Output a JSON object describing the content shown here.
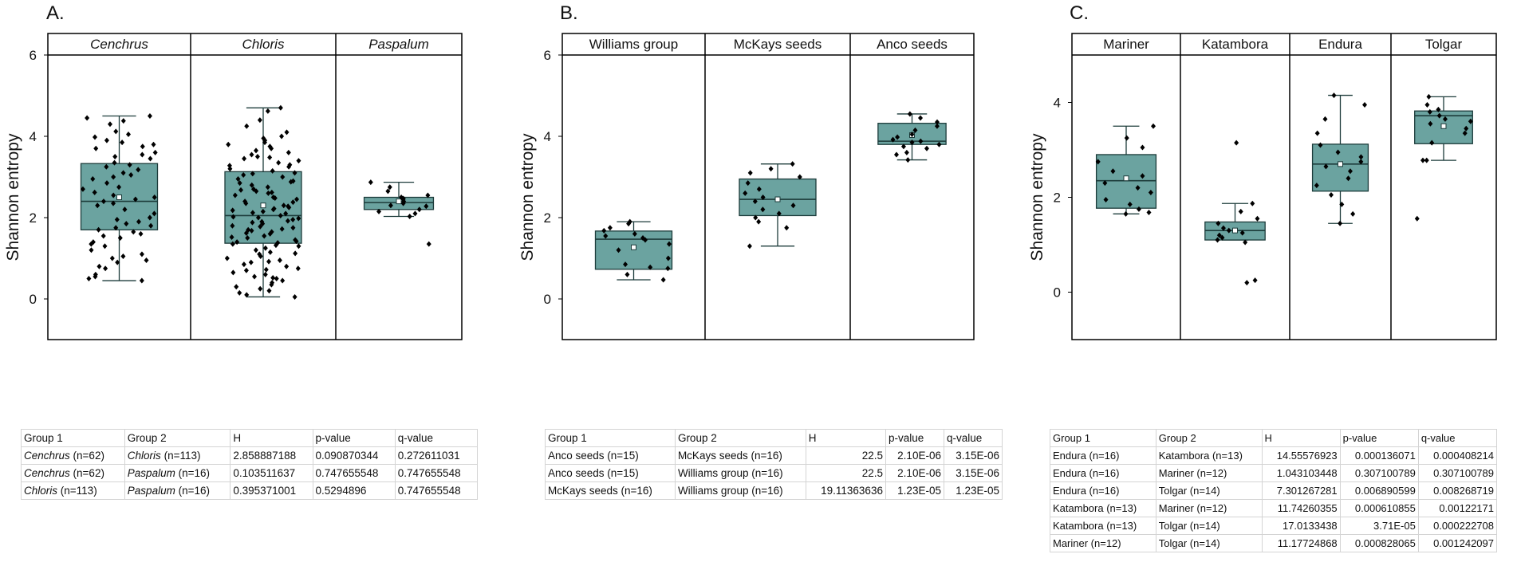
{
  "box_color": "#6ba3a0",
  "box_edge": "#1c3b3a",
  "point_color": "#000000",
  "chart_data": [
    {
      "type": "box",
      "panel": "A.",
      "ylabel": "Shannon entropy",
      "ylim": [
        -1,
        6
      ],
      "yticks": [
        0,
        2,
        4,
        6
      ],
      "italic_groups": true,
      "groups": [
        {
          "name": "Cenchrus",
          "n": 62,
          "min": 0.45,
          "q1": 1.7,
          "median": 2.4,
          "q3": 3.33,
          "max": 4.5,
          "mean": 2.5,
          "points": [
            4.5,
            4.45,
            4.38,
            4.3,
            4.12,
            4.05,
            3.98,
            3.9,
            3.85,
            3.8,
            3.75,
            3.7,
            3.6,
            3.55,
            3.5,
            3.45,
            3.35,
            3.3,
            3.25,
            3.18,
            3.1,
            3.05,
            3.0,
            2.95,
            2.85,
            2.75,
            2.7,
            2.62,
            2.55,
            2.5,
            2.45,
            2.4,
            2.35,
            2.3,
            2.2,
            2.1,
            2.0,
            1.95,
            1.9,
            1.85,
            1.8,
            1.75,
            1.7,
            1.65,
            1.6,
            1.55,
            1.5,
            1.4,
            1.35,
            1.3,
            1.2,
            1.1,
            1.05,
            1.0,
            0.95,
            0.9,
            0.8,
            0.75,
            0.6,
            0.55,
            0.5,
            0.45
          ]
        },
        {
          "name": "Chloris",
          "n": 113,
          "min": 0.05,
          "q1": 1.37,
          "median": 2.05,
          "q3": 3.13,
          "max": 4.7,
          "mean": 2.3,
          "points": [
            4.7,
            4.62,
            4.4,
            4.25,
            4.1,
            4.0,
            3.95,
            3.9,
            3.85,
            3.8,
            3.75,
            3.7,
            3.65,
            3.6,
            3.55,
            3.5,
            3.45,
            3.4,
            3.35,
            3.3,
            3.25,
            3.2,
            3.15,
            3.1,
            3.05,
            3.0,
            2.95,
            2.9,
            2.85,
            2.8,
            2.75,
            2.7,
            2.65,
            2.6,
            2.55,
            2.5,
            2.45,
            2.4,
            2.35,
            2.3,
            2.25,
            2.2,
            2.18,
            2.15,
            2.1,
            2.05,
            2.02,
            2.0,
            1.98,
            1.95,
            1.9,
            1.88,
            1.85,
            1.8,
            1.75,
            1.7,
            1.68,
            1.65,
            1.6,
            1.55,
            1.5,
            1.45,
            1.42,
            1.4,
            1.38,
            1.35,
            1.3,
            1.25,
            1.2,
            1.15,
            1.1,
            1.05,
            1.0,
            0.95,
            0.9,
            0.85,
            0.8,
            0.75,
            0.7,
            0.65,
            0.6,
            0.55,
            0.5,
            0.45,
            0.4,
            0.35,
            0.3,
            0.25,
            0.2,
            0.15,
            0.1,
            0.05,
            2.62,
            2.48,
            2.28,
            2.12,
            1.92,
            1.78,
            1.62,
            3.48,
            3.28,
            3.08,
            2.88,
            2.68,
            2.38,
            2.22,
            1.72,
            1.52,
            1.32,
            1.12,
            0.92,
            0.72,
            0.52
          ]
        },
        {
          "name": "Paspalum",
          "n": 16,
          "min": 2.03,
          "q1": 2.2,
          "median": 2.37,
          "q3": 2.5,
          "max": 2.87,
          "mean": 2.4,
          "points": [
            2.87,
            2.75,
            2.65,
            2.55,
            2.5,
            2.47,
            2.45,
            2.4,
            2.35,
            2.3,
            2.28,
            2.2,
            2.15,
            2.1,
            2.03,
            1.35
          ]
        }
      ],
      "table": {
        "headers": [
          "Group 1",
          "Group 2",
          "H",
          "p-value",
          "q-value"
        ],
        "rows": [
          {
            "g1": "Cenchrus",
            "n1": "(n=62)",
            "g2": "Chloris",
            "n2": "(n=113)",
            "h": "2.858887188",
            "p": "0.090870344",
            "q": "0.272611031"
          },
          {
            "g1": "Cenchrus",
            "n1": "(n=62)",
            "g2": "Paspalum",
            "n2": "(n=16)",
            "h": "0.103511637",
            "p": "0.747655548",
            "q": "0.747655548"
          },
          {
            "g1": "Chloris",
            "n1": "(n=113)",
            "g2": "Paspalum",
            "n2": "(n=16)",
            "h": "0.395371001",
            "p": "0.5294896",
            "q": "0.747655548"
          }
        ]
      }
    },
    {
      "type": "box",
      "panel": "B.",
      "ylabel": "Shannon entropy",
      "ylim": [
        -1,
        6
      ],
      "yticks": [
        0,
        2,
        4,
        6
      ],
      "italic_groups": false,
      "groups": [
        {
          "name": "Williams group",
          "min": 0.47,
          "q1": 0.73,
          "median": 1.47,
          "q3": 1.67,
          "max": 1.9,
          "mean": 1.27,
          "points": [
            1.9,
            1.85,
            1.75,
            1.68,
            1.6,
            1.55,
            1.5,
            1.45,
            1.35,
            1.2,
            1.0,
            0.85,
            0.78,
            0.75,
            0.6,
            0.47
          ]
        },
        {
          "name": "McKays seeds",
          "min": 1.3,
          "q1": 2.05,
          "median": 2.45,
          "q3": 2.95,
          "max": 3.32,
          "mean": 2.45,
          "points": [
            3.32,
            3.2,
            3.1,
            3.0,
            2.85,
            2.7,
            2.6,
            2.5,
            2.4,
            2.3,
            2.2,
            2.1,
            2.0,
            1.9,
            1.75,
            1.3
          ]
        },
        {
          "name": "Anco seeds",
          "min": 3.42,
          "q1": 3.8,
          "median": 3.88,
          "q3": 4.32,
          "max": 4.55,
          "mean": 4.03,
          "points": [
            4.55,
            4.45,
            4.35,
            4.25,
            4.15,
            4.05,
            3.98,
            3.92,
            3.88,
            3.85,
            3.8,
            3.75,
            3.7,
            3.6,
            3.55,
            3.42
          ]
        }
      ],
      "table": {
        "headers": [
          "Group 1",
          "Group 2",
          "H",
          "p-value",
          "q-value"
        ],
        "rows": [
          {
            "g1": "Anco seeds (n=15)",
            "g2": "McKays seeds (n=16)",
            "h": "22.5",
            "p": "2.10E-06",
            "q": "3.15E-06"
          },
          {
            "g1": "Anco seeds (n=15)",
            "g2": "Williams group (n=16)",
            "h": "22.5",
            "p": "2.10E-06",
            "q": "3.15E-06"
          },
          {
            "g1": "McKays seeds (n=16)",
            "g2": "Williams group (n=16)",
            "h": "19.11363636",
            "p": "1.23E-05",
            "q": "1.23E-05"
          }
        ]
      }
    },
    {
      "type": "box",
      "panel": "C.",
      "ylabel": "Shannon entropy",
      "ylim": [
        -1,
        5
      ],
      "yticks": [
        0,
        2,
        4
      ],
      "italic_groups": false,
      "groups": [
        {
          "name": "Mariner",
          "min": 1.65,
          "q1": 1.77,
          "median": 2.35,
          "q3": 2.9,
          "max": 3.5,
          "mean": 2.4,
          "points": [
            3.5,
            3.25,
            3.05,
            2.75,
            2.55,
            2.45,
            2.3,
            2.2,
            2.1,
            1.95,
            1.85,
            1.75,
            1.68,
            1.65
          ]
        },
        {
          "name": "Katambora",
          "min": 1.1,
          "q1": 1.1,
          "median": 1.3,
          "q3": 1.48,
          "max": 1.87,
          "mean": 1.3,
          "points": [
            3.15,
            1.87,
            1.7,
            1.55,
            1.45,
            1.35,
            1.3,
            1.25,
            1.2,
            1.15,
            1.1,
            1.05,
            0.25,
            0.2
          ]
        },
        {
          "name": "Endura",
          "min": 1.45,
          "q1": 2.13,
          "median": 2.7,
          "q3": 3.12,
          "max": 4.15,
          "mean": 2.7,
          "points": [
            4.15,
            3.95,
            3.65,
            3.35,
            3.1,
            2.95,
            2.85,
            2.75,
            2.65,
            2.55,
            2.4,
            2.25,
            2.05,
            1.85,
            1.65,
            1.45
          ]
        },
        {
          "name": "Tolgar",
          "min": 2.78,
          "q1": 3.13,
          "median": 3.72,
          "q3": 3.82,
          "max": 4.12,
          "mean": 3.5,
          "points": [
            4.12,
            3.95,
            3.85,
            3.8,
            3.72,
            3.65,
            3.55,
            3.45,
            3.35,
            3.15,
            2.78,
            2.78,
            1.55,
            3.6
          ]
        }
      ],
      "table": {
        "headers": [
          "Group 1",
          "Group 2",
          "H",
          "p-value",
          "q-value"
        ],
        "rows": [
          {
            "g1": "Endura (n=16)",
            "g2": "Katambora (n=13)",
            "h": "14.55576923",
            "p": "0.000136071",
            "q": "0.000408214"
          },
          {
            "g1": "Endura (n=16)",
            "g2": "Mariner (n=12)",
            "h": "1.043103448",
            "p": "0.307100789",
            "q": "0.307100789"
          },
          {
            "g1": "Endura (n=16)",
            "g2": "Tolgar (n=14)",
            "h": "7.301267281",
            "p": "0.006890599",
            "q": "0.008268719"
          },
          {
            "g1": "Katambora (n=13)",
            "g2": "Mariner (n=12)",
            "h": "11.74260355",
            "p": "0.000610855",
            "q": "0.00122171"
          },
          {
            "g1": "Katambora (n=13)",
            "g2": "Tolgar (n=14)",
            "h": "17.0133438",
            "p": "3.71E-05",
            "q": "0.000222708"
          },
          {
            "g1": "Mariner (n=12)",
            "g2": "Tolgar (n=14)",
            "h": "11.17724868",
            "p": "0.000828065",
            "q": "0.001242097"
          }
        ]
      }
    }
  ]
}
